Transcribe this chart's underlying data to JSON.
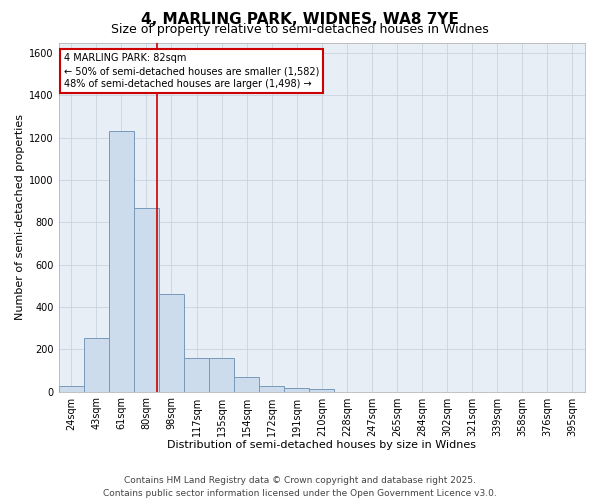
{
  "title": "4, MARLING PARK, WIDNES, WA8 7YE",
  "subtitle": "Size of property relative to semi-detached houses in Widnes",
  "xlabel": "Distribution of semi-detached houses by size in Widnes",
  "ylabel": "Number of semi-detached properties",
  "categories": [
    "24sqm",
    "43sqm",
    "61sqm",
    "80sqm",
    "98sqm",
    "117sqm",
    "135sqm",
    "154sqm",
    "172sqm",
    "191sqm",
    "210sqm",
    "228sqm",
    "247sqm",
    "265sqm",
    "284sqm",
    "302sqm",
    "321sqm",
    "339sqm",
    "358sqm",
    "376sqm",
    "395sqm"
  ],
  "values": [
    25,
    255,
    1230,
    870,
    460,
    160,
    160,
    70,
    25,
    15,
    10,
    0,
    0,
    0,
    0,
    0,
    0,
    0,
    0,
    0,
    0
  ],
  "bar_color": "#ccdcec",
  "bar_edge_color": "#7799bb",
  "vline_x_index": 3.43,
  "marker_label": "4 MARLING PARK: 82sqm",
  "annotation_line1": "← 50% of semi-detached houses are smaller (1,582)",
  "annotation_line2": "48% of semi-detached houses are larger (1,498) →",
  "annotation_box_facecolor": "#ffffff",
  "annotation_box_edgecolor": "#cc0000",
  "vline_color": "#cc0000",
  "ylim_max": 1650,
  "yticks": [
    0,
    200,
    400,
    600,
    800,
    1000,
    1200,
    1400,
    1600
  ],
  "grid_color": "#c8d4e0",
  "plot_bg_color": "#e8eef5",
  "footer_line1": "Contains HM Land Registry data © Crown copyright and database right 2025.",
  "footer_line2": "Contains public sector information licensed under the Open Government Licence v3.0.",
  "title_fontsize": 11,
  "subtitle_fontsize": 9,
  "xlabel_fontsize": 8,
  "ylabel_fontsize": 8,
  "tick_fontsize": 7,
  "annotation_fontsize": 7,
  "footer_fontsize": 6.5
}
